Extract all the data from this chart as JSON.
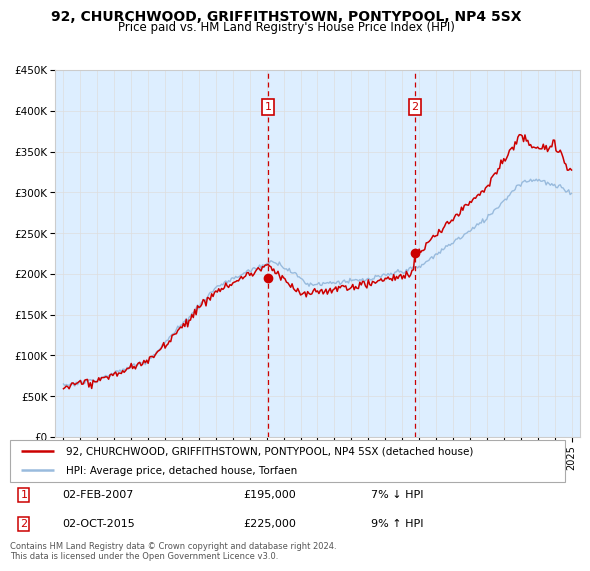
{
  "title": "92, CHURCHWOOD, GRIFFITHSTOWN, PONTYPOOL, NP4 5SX",
  "subtitle": "Price paid vs. HM Land Registry's House Price Index (HPI)",
  "ylim": [
    0,
    450000
  ],
  "xlim_start": 1994.5,
  "xlim_end": 2025.5,
  "sale1_date": 2007.08,
  "sale1_price": 195000,
  "sale1_label": "1",
  "sale2_date": 2015.75,
  "sale2_price": 225000,
  "sale2_label": "2",
  "legend_line1": "92, CHURCHWOOD, GRIFFITHSTOWN, PONTYPOOL, NP4 5SX (detached house)",
  "legend_line2": "HPI: Average price, detached house, Torfaen",
  "footer": "Contains HM Land Registry data © Crown copyright and database right 2024.\nThis data is licensed under the Open Government Licence v3.0.",
  "line_color_red": "#cc0000",
  "line_color_blue": "#99bbdd",
  "shade_color": "#ddeeff",
  "background_color": "#ffffff",
  "grid_color": "#dddddd",
  "sale1_row": "02-FEB-2007",
  "sale1_price_str": "£195,000",
  "sale1_hpi": "7% ↓ HPI",
  "sale2_row": "02-OCT-2015",
  "sale2_price_str": "£225,000",
  "sale2_hpi": "9% ↑ HPI"
}
